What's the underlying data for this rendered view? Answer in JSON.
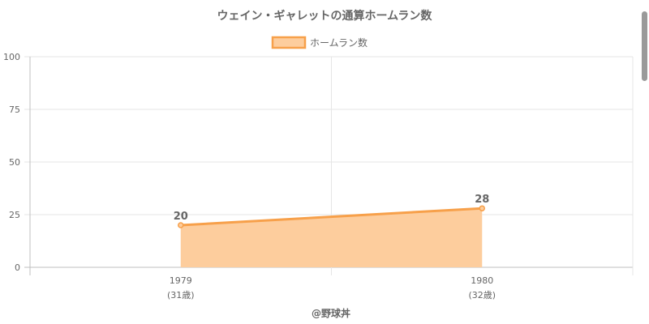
{
  "chart_data": {
    "type": "area",
    "title": "ウェイン・ギャレットの通算ホームラン数",
    "categories": [
      "1979",
      "1980"
    ],
    "category_sublabels": [
      "(31歳)",
      "(32歳)"
    ],
    "series": [
      {
        "name": "ホームラン数",
        "values": [
          20,
          28
        ]
      }
    ],
    "data_labels": [
      "20",
      "28"
    ],
    "ylim": [
      0,
      100
    ],
    "yticks": [
      "0",
      "25",
      "50",
      "75",
      "100"
    ],
    "grid": true,
    "legend": "top",
    "source": "@野球丼",
    "colors": {
      "line": "#f7a04a",
      "fill": "#fdcd9d",
      "grid": "#e6e6e6",
      "axis": "#bfbfbf",
      "text": "#666666"
    }
  }
}
